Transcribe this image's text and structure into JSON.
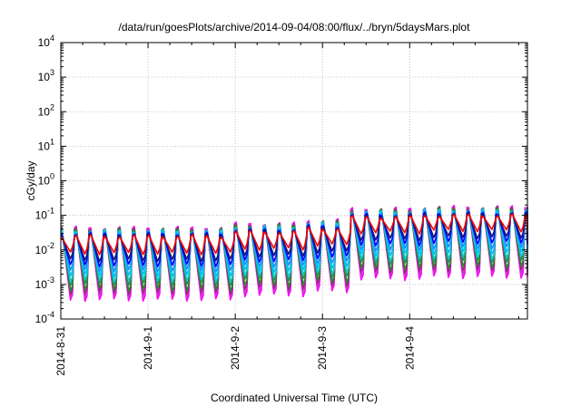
{
  "chart_data": {
    "type": "line",
    "title": "/data/run/goesPlots/archive/2014-09-04/08:00/flux/../bryn/5daysMars.plot",
    "xlabel": "Coordinated Universal Time (UTC)",
    "ylabel": "cGy/day",
    "y_scale": "log",
    "ylim_exp": [
      -4,
      4
    ],
    "y_tick_exponents": [
      -4,
      -3,
      -2,
      -1,
      0,
      1,
      2,
      3,
      4
    ],
    "x_tick_labels": [
      "2014-8-31",
      "2014-9-1",
      "2014-9-2",
      "2014-9-3",
      "2014-9-4"
    ],
    "xlim_days": [
      -1.0,
      4.35
    ],
    "grid": true,
    "legend": "none",
    "series_colors": [
      "#ff00ff",
      "#cc33cc",
      "#a0208e",
      "#228b22",
      "#2e8b57",
      "#00ced1",
      "#00bfff",
      "#1e90ff",
      "#0000ff",
      "#191970",
      "#ff0000"
    ],
    "series_peaks": [
      -1.35,
      -1.37,
      -1.39,
      -1.41,
      -1.43,
      -1.45,
      -1.47,
      -1.5,
      -1.53,
      -1.56,
      -1.6
    ],
    "series_troughs": [
      -3.45,
      -3.35,
      -3.25,
      -3.15,
      -3.0,
      -2.9,
      -2.75,
      -2.6,
      -2.45,
      -2.3,
      -2.1
    ],
    "cycle_hours": 4.0,
    "level_steps": [
      {
        "day": -1.0,
        "shift": 0.0
      },
      {
        "day": 1.0,
        "shift": 0.12
      },
      {
        "day": 1.9,
        "shift": 0.22
      },
      {
        "day": 2.4,
        "shift": 0.55
      },
      {
        "day": 3.2,
        "shift": 0.6
      }
    ]
  }
}
